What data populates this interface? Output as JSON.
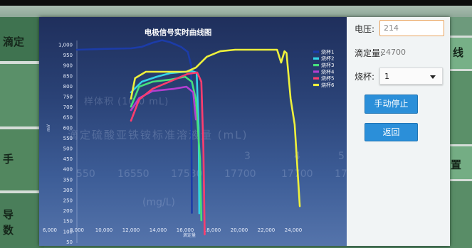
{
  "background_app": {
    "left_tabs": {
      "tab1": "滴定",
      "tab3": "手",
      "tab4_line1": "导",
      "tab4_line2": "数"
    },
    "right_tabs": {
      "tab1": "线",
      "tab2": "置"
    },
    "ghost_text": {
      "sample_volume": "样体积 (10.0 mL)",
      "titrant_header": "滴定硫酸亚铁铵标准溶液量 (mL)",
      "col3": "3",
      "col4": "4",
      "col5": "5",
      "row_values": [
        "550",
        "16550",
        "17530",
        "17700",
        "17700",
        "17"
      ],
      "result_unit": "(mg/L)"
    }
  },
  "dialog": {
    "control_panel": {
      "voltage_label": "电压:",
      "voltage_value": "214",
      "titrant_label": "滴定量:",
      "titrant_value": "24700",
      "beaker_label": "烧杯:",
      "beaker_selected": "1",
      "stop_button": "手动停止",
      "back_button": "返回"
    }
  },
  "theme": {
    "button_color": "#2b8fd9",
    "input_focus_border": "#e8a35e",
    "chart_background": "#2a4276"
  },
  "chart_data": {
    "type": "line",
    "title": "电极信号实时曲线图",
    "xlabel": "滴定量",
    "ylabel": "mV",
    "x_ticks": [
      "6,000",
      "8,000",
      "10,000",
      "12,000",
      "14,000",
      "16,000",
      "18,000",
      "20,000",
      "22,000",
      "24,000"
    ],
    "y_ticks": [
      "1,000",
      "950",
      "900",
      "850",
      "800",
      "750",
      "700",
      "650",
      "600",
      "550",
      "500",
      "450",
      "400",
      "350",
      "300",
      "250",
      "200",
      "150",
      "100",
      "50"
    ],
    "xlim": [
      6000,
      25000
    ],
    "ylim": [
      50,
      1050
    ],
    "grid": false,
    "legend_position": "top-right",
    "series": [
      {
        "name": "烧杯1",
        "color": "#1c3ca8",
        "points": [
          [
            8000,
            976
          ],
          [
            10000,
            980
          ],
          [
            12000,
            983
          ],
          [
            12800,
            990
          ],
          [
            13600,
            1010
          ],
          [
            14300,
            1022
          ],
          [
            14900,
            1012
          ],
          [
            15700,
            990
          ],
          [
            16200,
            965
          ],
          [
            16450,
            900
          ],
          [
            16500,
            190
          ]
        ]
      },
      {
        "name": "烧杯2",
        "color": "#33d4e6",
        "points": [
          [
            12000,
            771
          ],
          [
            12800,
            822
          ],
          [
            13900,
            846
          ],
          [
            14900,
            863
          ],
          [
            16000,
            870
          ],
          [
            16500,
            873
          ],
          [
            16850,
            866
          ],
          [
            17000,
            600
          ],
          [
            17050,
            188
          ]
        ]
      },
      {
        "name": "烧杯3",
        "color": "#46e07c",
        "points": [
          [
            12000,
            702
          ],
          [
            12600,
            798
          ],
          [
            13600,
            822
          ],
          [
            14900,
            832
          ],
          [
            16000,
            846
          ],
          [
            16500,
            822
          ],
          [
            16800,
            736
          ],
          [
            17100,
            450
          ],
          [
            17200,
            154
          ]
        ]
      },
      {
        "name": "烧杯4",
        "color": "#b33fd0",
        "points": [
          [
            12000,
            685
          ],
          [
            12600,
            743
          ],
          [
            13600,
            777
          ],
          [
            15200,
            788
          ],
          [
            16100,
            798
          ],
          [
            16600,
            771
          ],
          [
            16800,
            640
          ]
        ]
      },
      {
        "name": "烧杯5",
        "color": "#ff3d6e",
        "points": [
          [
            12000,
            634
          ],
          [
            12600,
            736
          ],
          [
            13600,
            788
          ],
          [
            15200,
            832
          ],
          [
            16200,
            860
          ],
          [
            16900,
            866
          ],
          [
            17200,
            822
          ],
          [
            17350,
            500
          ],
          [
            17450,
            86
          ]
        ]
      },
      {
        "name": "烧杯6",
        "color": "#eef03c",
        "points": [
          [
            12000,
            740
          ],
          [
            12300,
            839
          ],
          [
            13100,
            870
          ],
          [
            16100,
            870
          ],
          [
            16800,
            890
          ],
          [
            17600,
            942
          ],
          [
            18600,
            969
          ],
          [
            19700,
            976
          ],
          [
            22800,
            976
          ],
          [
            23100,
            914
          ],
          [
            23350,
            969
          ],
          [
            23500,
            960
          ],
          [
            23800,
            740
          ],
          [
            24100,
            616
          ],
          [
            24480,
            222
          ]
        ]
      }
    ]
  }
}
